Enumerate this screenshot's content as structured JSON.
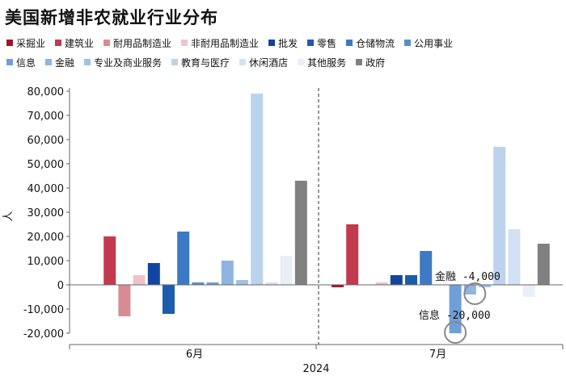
{
  "title": "美国新增非农就业行业分布",
  "chart_data": {
    "type": "bar",
    "title": "美国新增非农就业行业分布",
    "ylabel": "人",
    "xlabel": "2024",
    "ylim": [
      -20000,
      80000
    ],
    "yticks": [
      80000,
      70000,
      60000,
      50000,
      40000,
      30000,
      20000,
      10000,
      0,
      -10000,
      -20000
    ],
    "ytick_labels": [
      "80,000",
      "70,000",
      "60,000",
      "50,000",
      "40,000",
      "30,000",
      "20,000",
      "10,000",
      "0",
      "-10,000",
      "-20,000"
    ],
    "categories": [
      "6月",
      "7月"
    ],
    "series": [
      {
        "name": "采掘业",
        "color": "#a5132b",
        "values": [
          0,
          -1000
        ]
      },
      {
        "name": "建筑业",
        "color": "#c23a4e",
        "values": [
          20000,
          25000
        ]
      },
      {
        "name": "耐用品制造业",
        "color": "#d98b94",
        "values": [
          -13000,
          0
        ]
      },
      {
        "name": "非耐用品制造业",
        "color": "#efc3cb",
        "values": [
          4000,
          1000
        ]
      },
      {
        "name": "批发",
        "color": "#1245a0",
        "values": [
          9000,
          4000
        ]
      },
      {
        "name": "零售",
        "color": "#1b5cad",
        "values": [
          -12000,
          4000
        ]
      },
      {
        "name": "仓储物流",
        "color": "#3c7ac3",
        "values": [
          22000,
          14000
        ]
      },
      {
        "name": "公用事业",
        "color": "#5a8fcc",
        "values": [
          1000,
          0
        ]
      },
      {
        "name": "信息",
        "color": "#6f9fd6",
        "values": [
          1000,
          -20000
        ]
      },
      {
        "name": "金融",
        "color": "#8fb4df",
        "values": [
          10000,
          -4000
        ]
      },
      {
        "name": "专业及商业服务",
        "color": "#a3c1e6",
        "values": [
          2000,
          -1000
        ]
      },
      {
        "name": "教育与医疗",
        "color": "#bcd3ee",
        "values": [
          79000,
          57000
        ]
      },
      {
        "name": "休闲酒店",
        "color": "#d2e2f4",
        "values": [
          1000,
          23000
        ]
      },
      {
        "name": "其他服务",
        "color": "#e8eff9",
        "values": [
          12000,
          -5000
        ]
      },
      {
        "name": "政府",
        "color": "#808080",
        "values": [
          43000,
          17000
        ]
      }
    ],
    "annotations": [
      {
        "label": "金融",
        "value_text": "-4,000",
        "series": "金融",
        "category": "7月"
      },
      {
        "label": "信息",
        "value_text": "-20,000",
        "series": "信息",
        "category": "7月"
      }
    ]
  },
  "legend_rows": [
    [
      "采掘业",
      "建筑业",
      "耐用品制造业",
      "非耐用品制造业",
      "批发",
      "零售",
      "仓储物流",
      "公用事业"
    ],
    [
      "信息",
      "金融",
      "专业及商业服务",
      "教育与医疗",
      "休闲酒店",
      "其他服务",
      "政府"
    ]
  ]
}
